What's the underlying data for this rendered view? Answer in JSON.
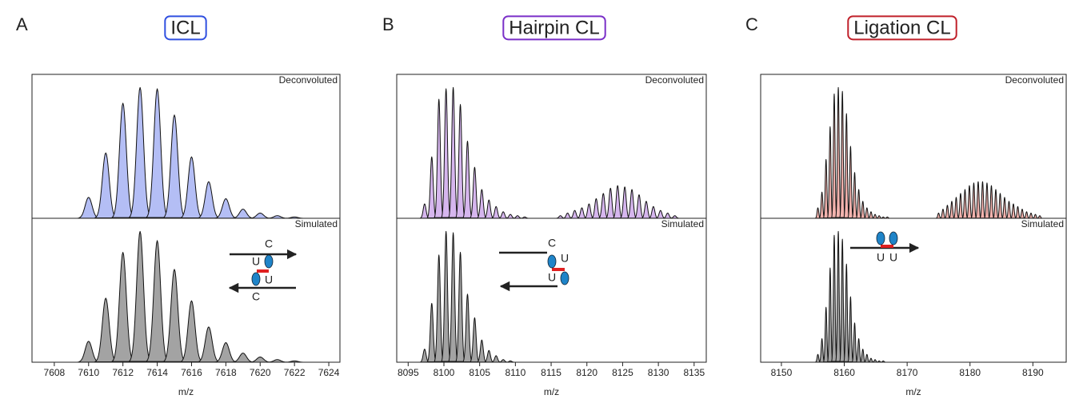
{
  "chart_data": [
    {
      "type": "spectrum",
      "panel": "A",
      "title": "ICL",
      "title_color": "#3050e0",
      "x_label": "m/z",
      "xlim": [
        7606.7,
        7624.65
      ],
      "xticks": [
        7608,
        7610,
        7612,
        7614,
        7616,
        7618,
        7620,
        7622,
        7624
      ],
      "ylim": [
        0,
        110
      ],
      "annotations": [
        "C",
        "U",
        "U",
        "C"
      ],
      "series": [
        {
          "name": "Deconvoluted",
          "color": "#b4bef5",
          "x": [
            7610,
            7611,
            7612,
            7613,
            7614,
            7615,
            7616,
            7617,
            7618,
            7619,
            7620,
            7621,
            7622
          ],
          "values": [
            16,
            50,
            88,
            100,
            99,
            79,
            47,
            28,
            15,
            7,
            4,
            2,
            1
          ]
        },
        {
          "name": "Simulated",
          "color": "#a3a3a3",
          "x": [
            7610,
            7611,
            7612,
            7613,
            7614,
            7615,
            7616,
            7617,
            7618,
            7619,
            7620,
            7621,
            7622
          ],
          "values": [
            16,
            49,
            84,
            100,
            93,
            71,
            47,
            27,
            15,
            7,
            4,
            2,
            1
          ]
        }
      ]
    },
    {
      "type": "spectrum",
      "panel": "B",
      "title": "Hairpin CL",
      "title_color": "#7a2fc8",
      "x_label": "m/z",
      "xlim": [
        8093.4,
        8136.7
      ],
      "xticks": [
        8095,
        8100,
        8105,
        8110,
        8115,
        8120,
        8125,
        8130,
        8135
      ],
      "ylim": [
        0,
        110
      ],
      "annotations": [
        "C",
        "U",
        "U"
      ],
      "series": [
        {
          "name": "Deconvoluted",
          "color": "#d6b6ee",
          "x": [
            8097.3,
            8098.3,
            8099.3,
            8100.3,
            8101.3,
            8102.3,
            8103.3,
            8104.3,
            8105.3,
            8106.3,
            8107.3,
            8108.3,
            8109.3,
            8110.3,
            8111.3,
            8116.3,
            8117.3,
            8118.3,
            8119.3,
            8120.3,
            8121.3,
            8122.3,
            8123.3,
            8124.3,
            8125.3,
            8126.3,
            8127.3,
            8128.3,
            8129.3,
            8130.3,
            8131.3,
            8132.3
          ],
          "values": [
            11,
            47,
            91,
            99,
            100,
            87,
            59,
            39,
            22,
            14,
            9,
            5,
            3,
            2,
            1,
            2,
            4,
            6,
            8,
            11,
            15,
            19,
            23,
            25,
            24,
            22,
            18,
            13,
            9,
            6,
            4,
            2
          ]
        },
        {
          "name": "Simulated",
          "color": "#a3a3a3",
          "x": [
            8097.3,
            8098.3,
            8099.3,
            8100.3,
            8101.3,
            8102.3,
            8103.3,
            8104.3,
            8105.3,
            8106.3,
            8107.3,
            8108.3,
            8109.3
          ],
          "values": [
            10,
            45,
            82,
            100,
            99,
            84,
            52,
            34,
            17,
            9,
            5,
            2,
            1
          ]
        }
      ]
    },
    {
      "type": "spectrum",
      "panel": "C",
      "title": "Ligation CL",
      "title_color": "#c0202a",
      "x_label": "m/z",
      "xlim": [
        8146.7,
        8195.3
      ],
      "xticks": [
        8150,
        8160,
        8170,
        8180,
        8190
      ],
      "ylim": [
        0,
        110
      ],
      "annotations": [
        "U",
        "U"
      ],
      "series": [
        {
          "name": "Deconvoluted",
          "color": "#f3b3ae",
          "x": [
            8155.8,
            8156.45,
            8157.1,
            8157.75,
            8158.4,
            8159.05,
            8159.7,
            8160.35,
            8161.0,
            8161.65,
            8162.3,
            8162.95,
            8163.6,
            8164.25,
            8164.9,
            8165.55,
            8166.2,
            8166.85,
            8175.0,
            8175.7,
            8176.4,
            8177.1,
            8177.8,
            8178.5,
            8179.2,
            8179.9,
            8180.6,
            8181.3,
            8182.0,
            8182.7,
            8183.4,
            8184.1,
            8184.8,
            8185.5,
            8186.2,
            8186.9,
            8187.6,
            8188.3,
            8189.0,
            8189.7,
            8190.4,
            8191.1
          ],
          "values": [
            8,
            20,
            45,
            70,
            95,
            100,
            97,
            80,
            55,
            35,
            22,
            13,
            8,
            5,
            3,
            2,
            1,
            1,
            4,
            7,
            10,
            13,
            16,
            19,
            22,
            25,
            27,
            28,
            28,
            27,
            25,
            22,
            19,
            16,
            13,
            11,
            9,
            7,
            5,
            4,
            3,
            2
          ]
        },
        {
          "name": "Simulated",
          "color": "#a3a3a3",
          "x": [
            8155.8,
            8156.45,
            8157.1,
            8157.75,
            8158.4,
            8159.05,
            8159.7,
            8160.35,
            8161.0,
            8161.65,
            8162.3,
            8162.95,
            8163.6,
            8164.25,
            8164.9,
            8165.55,
            8166.2
          ],
          "values": [
            6,
            18,
            42,
            72,
            97,
            100,
            94,
            75,
            50,
            30,
            18,
            10,
            6,
            3,
            2,
            1,
            1
          ]
        }
      ]
    }
  ]
}
